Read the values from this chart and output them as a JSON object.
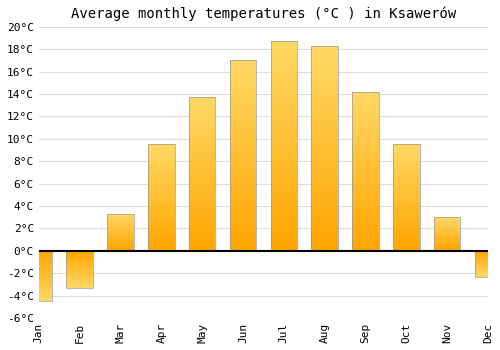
{
  "title": "Average monthly temperatures (°C ) in Ksawerów",
  "months": [
    "Jan",
    "Feb",
    "Mar",
    "Apr",
    "May",
    "Jun",
    "Jul",
    "Aug",
    "Sep",
    "Oct",
    "Nov",
    "Dec"
  ],
  "values": [
    -4.5,
    -3.3,
    3.3,
    9.5,
    13.7,
    17.0,
    18.7,
    18.3,
    14.2,
    9.5,
    3.0,
    -2.3
  ],
  "bar_color_top": "#FFD966",
  "bar_color_bottom": "#FFA500",
  "bar_edge_color": "#999999",
  "ylim": [
    -6,
    20
  ],
  "yticks": [
    -6,
    -4,
    -2,
    0,
    2,
    4,
    6,
    8,
    10,
    12,
    14,
    16,
    18,
    20
  ],
  "ytick_labels": [
    "-6°C",
    "-4°C",
    "-2°C",
    "0°C",
    "2°C",
    "4°C",
    "6°C",
    "8°C",
    "10°C",
    "12°C",
    "14°C",
    "16°C",
    "18°C",
    "20°C"
  ],
  "background_color": "#ffffff",
  "plot_background": "#ffffff",
  "grid_color": "#dddddd",
  "zero_line_color": "#000000",
  "title_fontsize": 10,
  "tick_fontsize": 8,
  "bar_width": 0.65
}
